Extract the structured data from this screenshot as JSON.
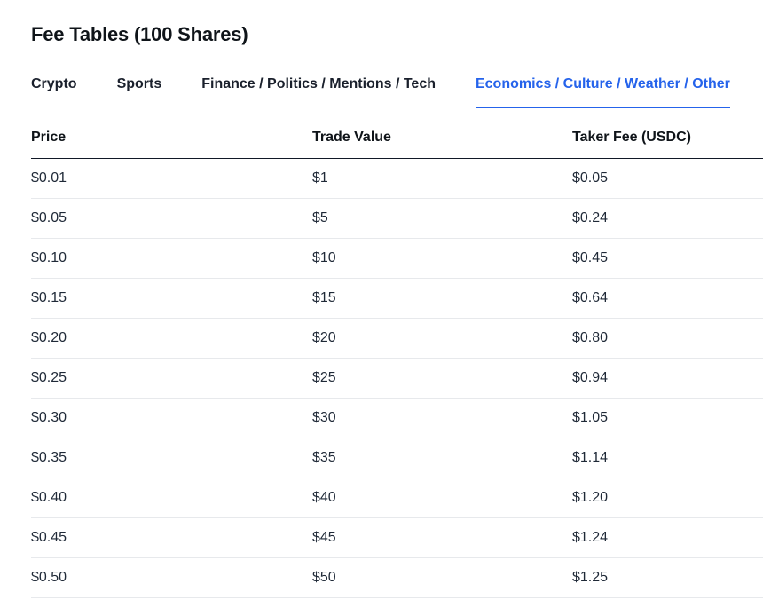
{
  "page": {
    "title": "Fee Tables (100 Shares)"
  },
  "colors": {
    "accent": "#2563eb",
    "text": "#111827",
    "row_divider": "#e7e9ec"
  },
  "tabs": [
    {
      "label": "Crypto",
      "active": false
    },
    {
      "label": "Sports",
      "active": false
    },
    {
      "label": "Finance / Politics / Mentions / Tech",
      "active": false
    },
    {
      "label": "Economics / Culture / Weather / Other",
      "active": true
    }
  ],
  "table": {
    "columns": [
      "Price",
      "Trade Value",
      "Taker Fee (USDC)"
    ],
    "rows": [
      [
        "$0.01",
        "$1",
        "$0.05"
      ],
      [
        "$0.05",
        "$5",
        "$0.24"
      ],
      [
        "$0.10",
        "$10",
        "$0.45"
      ],
      [
        "$0.15",
        "$15",
        "$0.64"
      ],
      [
        "$0.20",
        "$20",
        "$0.80"
      ],
      [
        "$0.25",
        "$25",
        "$0.94"
      ],
      [
        "$0.30",
        "$30",
        "$1.05"
      ],
      [
        "$0.35",
        "$35",
        "$1.14"
      ],
      [
        "$0.40",
        "$40",
        "$1.20"
      ],
      [
        "$0.45",
        "$45",
        "$1.24"
      ],
      [
        "$0.50",
        "$50",
        "$1.25"
      ]
    ]
  }
}
